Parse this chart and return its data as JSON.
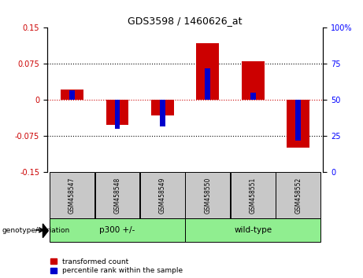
{
  "title": "GDS3598 / 1460626_at",
  "samples": [
    "GSM458547",
    "GSM458548",
    "GSM458549",
    "GSM458550",
    "GSM458551",
    "GSM458552"
  ],
  "red_values": [
    0.022,
    -0.052,
    -0.032,
    0.118,
    0.08,
    -0.098
  ],
  "blue_values_pct": [
    57,
    30,
    32,
    72,
    55,
    22
  ],
  "group_bg_color": "#90EE90",
  "sample_bg_color": "#c8c8c8",
  "ylim_left": [
    -0.15,
    0.15
  ],
  "ylim_right": [
    0,
    100
  ],
  "left_yticks": [
    -0.15,
    -0.075,
    0,
    0.075,
    0.15
  ],
  "right_yticks": [
    0,
    25,
    50,
    75,
    100
  ],
  "red_color": "#cc0000",
  "blue_color": "#0000cc",
  "bar_width": 0.5,
  "blue_bar_width": 0.12,
  "genotype_label": "genotype/variation",
  "legend_red": "transformed count",
  "legend_blue": "percentile rank within the sample",
  "zero_line_color": "#cc0000",
  "grid_color": "#333333",
  "group_info": [
    {
      "label": "p300 +/-",
      "start": 0,
      "end": 2
    },
    {
      "label": "wild-type",
      "start": 3,
      "end": 5
    }
  ]
}
